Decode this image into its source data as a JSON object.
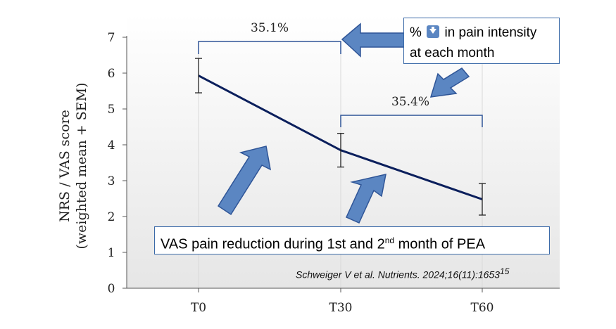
{
  "chart_data": {
    "type": "line",
    "categories": [
      "T0",
      "T30",
      "T60"
    ],
    "series": [
      {
        "values": [
          5.93,
          3.85,
          2.48
        ],
        "error": [
          0.48,
          0.47,
          0.44
        ],
        "color": "#0b1f5c"
      }
    ],
    "ylabel_line1": "NRS / VAS score",
    "ylabel_line2": "(weighted mean + SEM)",
    "ylim": [
      0,
      7
    ],
    "yticks": [
      "0",
      "1",
      "2",
      "3",
      "4",
      "5",
      "6",
      "7"
    ],
    "grid": false,
    "annotations": {
      "reduction_1": "35.1%",
      "reduction_2": "35.4%"
    }
  },
  "callout": {
    "prefix": "% ",
    "icon": "down-arrow-icon",
    "line1_suffix": " in pain intensity",
    "line2": "at each month"
  },
  "caption": {
    "text_a": "VAS pain reduction during 1st and 2",
    "sup": "nd",
    "text_b": " month of PEA"
  },
  "citation": {
    "text": "Schweiger V et al. Nutrients. 2024;16(11):1653",
    "sup": "15"
  },
  "colors": {
    "line": "#0b1f5c",
    "arrow": "#5b86c2",
    "arrow_stroke": "#2f5597",
    "bracket": "#2f5597"
  }
}
